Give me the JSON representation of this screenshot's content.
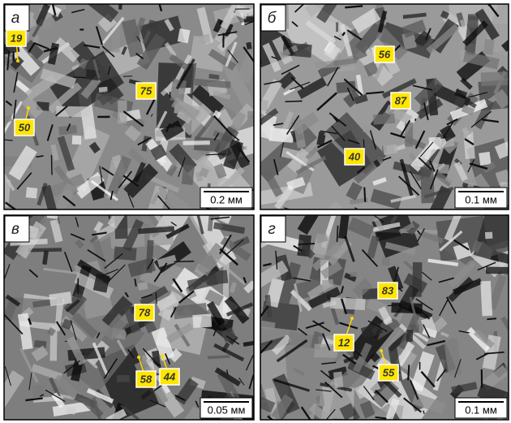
{
  "panels": [
    {
      "letter": "а",
      "labels": [
        "19",
        "75",
        "50"
      ],
      "scale": "0.2 мм"
    },
    {
      "letter": "б",
      "labels": [
        "56",
        "87",
        "40"
      ],
      "scale": "0.1 мм"
    },
    {
      "letter": "в",
      "labels": [
        "78",
        "58",
        "44"
      ],
      "scale": "0.05 мм"
    },
    {
      "letter": "г",
      "labels": [
        "83",
        "12",
        "55"
      ],
      "scale": "0.1 мм"
    }
  ]
}
